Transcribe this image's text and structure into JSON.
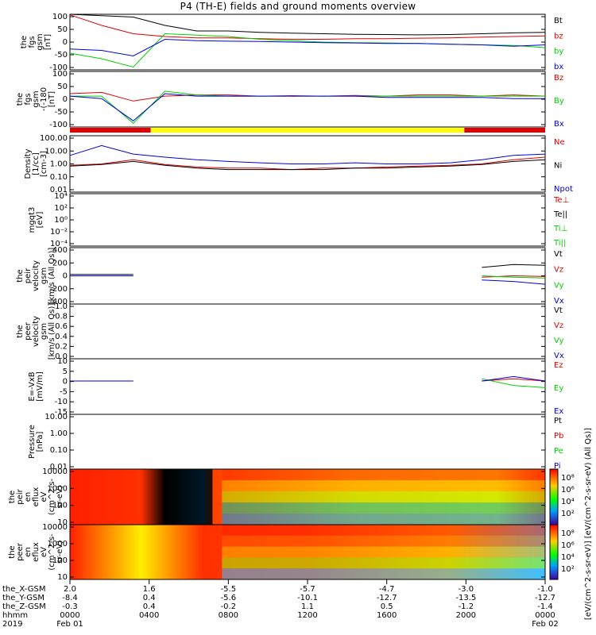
{
  "title": "P4 (TH-E) fields and ground moments overview",
  "colors": {
    "black": "#000000",
    "red": "#e00000",
    "green": "#00d000",
    "blue": "#0000e0",
    "yellow": "#ffff00"
  },
  "chart_data": [
    {
      "type": "line",
      "ylabel": [
        "the",
        "fgs",
        "gsm",
        "[nT]"
      ],
      "yticks": [
        "100",
        "50",
        "0",
        "-50",
        "-100"
      ],
      "ylim": [
        -100,
        100
      ],
      "series": [
        {
          "name": "Bt",
          "color": "black",
          "values": [
            100,
            95,
            90,
            60,
            40,
            40,
            35,
            32,
            30,
            28,
            27,
            26,
            27,
            30,
            33,
            35
          ]
        },
        {
          "name": "bz",
          "color": "red",
          "values": [
            98,
            60,
            30,
            20,
            15,
            15,
            12,
            10,
            10,
            12,
            12,
            14,
            15,
            18,
            20,
            22
          ]
        },
        {
          "name": "by",
          "color": "green",
          "values": [
            -40,
            -60,
            -90,
            30,
            25,
            20,
            10,
            5,
            0,
            -2,
            -3,
            -5,
            -8,
            -10,
            -12,
            -20
          ]
        },
        {
          "name": "bx",
          "color": "blue",
          "values": [
            -25,
            -30,
            -50,
            10,
            5,
            3,
            2,
            0,
            -2,
            -3,
            -5,
            -5,
            -8,
            -10,
            -15,
            -10
          ]
        }
      ]
    },
    {
      "type": "line",
      "ylabel": [
        "the",
        "fgs",
        "gsm",
        "-(-180",
        "[nT]"
      ],
      "yticks": [
        "100",
        "50",
        "0",
        "-50",
        "-100"
      ],
      "ylim": [
        -125,
        100
      ],
      "series": [
        {
          "name": "Bz",
          "color": "red",
          "values": [
            10,
            15,
            -20,
            0,
            5,
            5,
            0,
            2,
            0,
            3,
            0,
            5,
            5,
            0,
            5,
            0
          ]
        },
        {
          "name": "By",
          "color": "green",
          "values": [
            0,
            0,
            -110,
            20,
            5,
            0,
            0,
            0,
            0,
            0,
            0,
            0,
            0,
            0,
            0,
            0
          ]
        },
        {
          "name": "Bx",
          "color": "blue",
          "values": [
            0,
            -10,
            -100,
            10,
            0,
            0,
            0,
            0,
            0,
            0,
            -5,
            -5,
            -5,
            -5,
            -10,
            -10
          ]
        }
      ]
    },
    {
      "type": "line",
      "ylabel": [
        "Density",
        "[1/cc]",
        "[cm-3]"
      ],
      "yticks": [
        "100.00",
        "10.00",
        "1.00",
        "0.10",
        "0.01"
      ],
      "ylim": [
        0.01,
        100
      ],
      "scale": "log",
      "series": [
        {
          "name": "Ne",
          "color": "red",
          "values": [
            0.8,
            1.0,
            2.0,
            0.9,
            0.6,
            0.5,
            0.5,
            0.4,
            0.5,
            0.5,
            0.6,
            0.7,
            0.8,
            1.0,
            2.0,
            3.0
          ]
        },
        {
          "name": "Ni",
          "color": "black",
          "values": [
            0.7,
            0.9,
            1.5,
            0.8,
            0.5,
            0.4,
            0.4,
            0.4,
            0.4,
            0.5,
            0.5,
            0.6,
            0.7,
            0.9,
            1.5,
            2.0
          ]
        },
        {
          "name": "Npot",
          "color": "blue",
          "values": [
            4.0,
            20.0,
            5.0,
            3.0,
            2.0,
            1.5,
            1.2,
            1.0,
            1.0,
            1.2,
            1.0,
            1.0,
            1.2,
            2.0,
            4.0,
            5.0
          ]
        }
      ]
    },
    {
      "type": "line",
      "ylabel": [
        "mgqt3",
        "[eV]"
      ],
      "yticks": [
        "10⁴",
        "10²",
        "10⁰",
        "10⁻²",
        "10⁻⁴"
      ],
      "legend_only": true,
      "series": [
        {
          "name": "Te⊥",
          "color": "red"
        },
        {
          "name": "Te||",
          "color": "black"
        },
        {
          "name": "Ti⊥",
          "color": "green"
        },
        {
          "name": "Ti||",
          "color": "green"
        }
      ]
    },
    {
      "type": "line",
      "ylabel": [
        "the",
        "peir",
        "velocity",
        "gsm",
        "[km/s (All Qs)]"
      ],
      "yticks": [
        "400",
        "200",
        "0",
        "-200",
        "-400"
      ],
      "ylim": [
        -400,
        400
      ],
      "series": [
        {
          "name": "Vt",
          "color": "black",
          "values": [
            20,
            20,
            20,
            null,
            null,
            null,
            null,
            null,
            null,
            null,
            null,
            null,
            null,
            120,
            160,
            150
          ]
        },
        {
          "name": "Vz",
          "color": "red",
          "values": [
            0,
            0,
            0,
            null,
            null,
            null,
            null,
            null,
            null,
            null,
            null,
            null,
            null,
            -20,
            0,
            -10
          ]
        },
        {
          "name": "Vy",
          "color": "green",
          "values": [
            0,
            0,
            0,
            null,
            null,
            null,
            null,
            null,
            null,
            null,
            null,
            null,
            null,
            0,
            -20,
            -30
          ]
        },
        {
          "name": "Vx",
          "color": "blue",
          "values": [
            0,
            0,
            0,
            null,
            null,
            null,
            null,
            null,
            null,
            null,
            null,
            null,
            null,
            -60,
            -80,
            -120
          ]
        }
      ]
    },
    {
      "type": "line",
      "ylabel": [
        "the",
        "peer",
        "velocity",
        "gsm",
        "[km/s (All Qs)]"
      ],
      "yticks": [
        "1.0",
        "0.8",
        "0.6",
        "0.4",
        "0.2",
        "0.0"
      ],
      "ylim": [
        0,
        1
      ],
      "series": [
        {
          "name": "Vt",
          "color": "black"
        },
        {
          "name": "Vz",
          "color": "red"
        },
        {
          "name": "Vy",
          "color": "green"
        },
        {
          "name": "Vx",
          "color": "blue"
        }
      ]
    },
    {
      "type": "line",
      "ylabel": [
        "E=-VxB",
        "[mV/m]"
      ],
      "yticks": [
        "10",
        "5",
        "0",
        "-5",
        "-10",
        "-15"
      ],
      "ylim": [
        -15,
        10
      ],
      "series": [
        {
          "name": "Ez",
          "color": "red",
          "values": [
            0,
            0,
            0,
            null,
            null,
            null,
            null,
            null,
            null,
            null,
            null,
            null,
            null,
            0,
            1,
            0
          ]
        },
        {
          "name": "Ey",
          "color": "green",
          "values": [
            0,
            0,
            0,
            null,
            null,
            null,
            null,
            null,
            null,
            null,
            null,
            null,
            null,
            1,
            -2,
            -3
          ]
        },
        {
          "name": "Ex",
          "color": "blue",
          "values": [
            0,
            0,
            0,
            null,
            null,
            null,
            null,
            null,
            null,
            null,
            null,
            null,
            null,
            0,
            2,
            0
          ]
        }
      ]
    },
    {
      "type": "line",
      "ylabel": [
        "Pressure",
        "[nPa]"
      ],
      "yticks": [
        "10.00",
        "1.00",
        "0.10",
        "0.01"
      ],
      "scale": "log",
      "series": [
        {
          "name": "Pt",
          "color": "black"
        },
        {
          "name": "Pb",
          "color": "red"
        },
        {
          "name": "Pe",
          "color": "green"
        },
        {
          "name": "Pi",
          "color": "blue"
        }
      ]
    },
    {
      "type": "heatmap",
      "ylabel": [
        "the",
        "peir",
        "en",
        "eflux",
        "eV",
        "(cm^2-s-",
        "sr-eV)"
      ],
      "yticks": [
        "10000",
        "1000",
        "100",
        "10"
      ]
    },
    {
      "type": "heatmap",
      "ylabel": [
        "the",
        "peer",
        "en",
        "eflux",
        "eV",
        "(cm^2-s-",
        "sr-eV)"
      ],
      "yticks": [
        "10000",
        "1000",
        "100",
        "10"
      ]
    }
  ],
  "colorbar": {
    "ticks": [
      "10⁸",
      "10⁶",
      "10⁴",
      "10²",
      "10⁸",
      "10⁶",
      "10⁴",
      "10²"
    ],
    "label": "[eV/(cm^2-s-sr-eV)] [eV/(cm^2-s-sr-eV) (All Qs)]"
  },
  "footer": {
    "row_labels": [
      "the_X-GSM",
      "the_Y-GSM",
      "the_Z-GSM",
      "hhmm",
      "2019"
    ],
    "columns": [
      [
        "2.0",
        "-8.4",
        "-0.3",
        "0000",
        "Feb 01"
      ],
      [
        "1.6",
        "0.4",
        "0.4",
        "0400",
        ""
      ],
      [
        "-5.5",
        "-5.6",
        "-0.2",
        "0800",
        ""
      ],
      [
        "-5.7",
        "-10.1",
        "1.1",
        "1200",
        ""
      ],
      [
        "-4.7",
        "-12.7",
        "0.5",
        "1600",
        ""
      ],
      [
        "-3.0",
        "-13.5",
        "-1.2",
        "2000",
        ""
      ],
      [
        "-1.0",
        "-12.7",
        "-1.4",
        "0000",
        "Feb 02"
      ]
    ]
  }
}
